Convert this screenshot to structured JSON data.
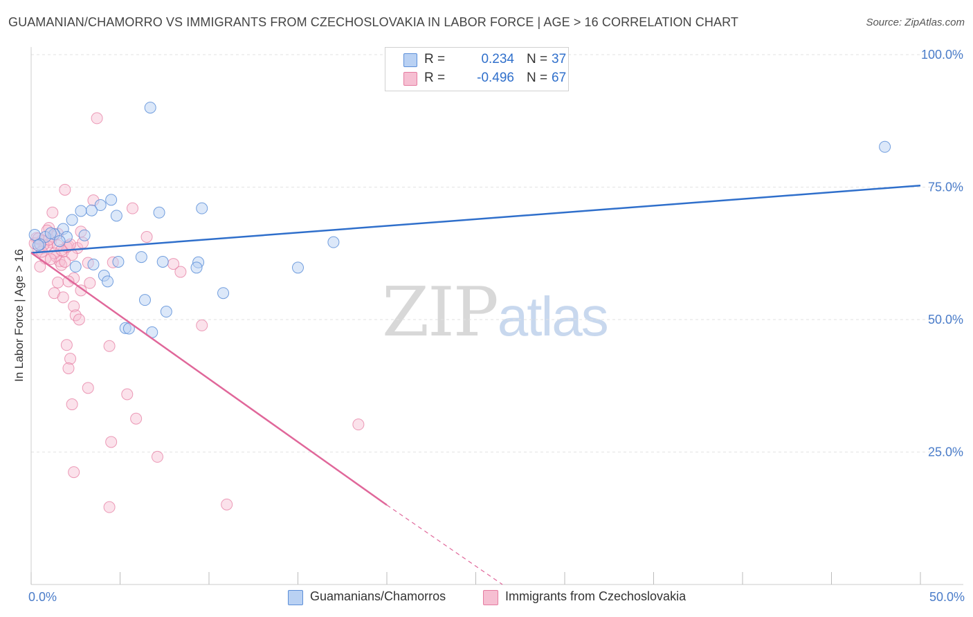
{
  "title": "GUAMANIAN/CHAMORRO VS IMMIGRANTS FROM CZECHOSLOVAKIA IN LABOR FORCE | AGE > 16 CORRELATION CHART",
  "source": "Source: ZipAtlas.com",
  "watermark": {
    "zip": "ZIP",
    "atlas": "atlas"
  },
  "legend": {
    "r_label": "R =",
    "n_label": "N =",
    "series1": {
      "r": "0.234",
      "n": "37"
    },
    "series2": {
      "r": "-0.496",
      "n": "67"
    }
  },
  "colors": {
    "blue_fill": "#b9d1f3",
    "blue_stroke": "#5b8ed8",
    "blue_line": "#2f6fcb",
    "pink_fill": "#f6bfd2",
    "pink_stroke": "#e57ba0",
    "pink_line": "#e0679a",
    "tick_label": "#4a7cc9"
  },
  "chart_data": {
    "type": "scatter",
    "title": "GUAMANIAN/CHAMORRO VS IMMIGRANTS FROM CZECHOSLOVAKIA IN LABOR FORCE | AGE > 16 CORRELATION CHART",
    "xlabel": "",
    "ylabel": "In Labor Force | Age > 16",
    "xlim": [
      0,
      50
    ],
    "ylim": [
      0,
      100
    ],
    "x_tick_labels": [
      {
        "value": 0,
        "label": "0.0%"
      },
      {
        "value": 50,
        "label": "50.0%"
      }
    ],
    "y_tick_labels": [
      {
        "value": 100,
        "label": "100.0%"
      },
      {
        "value": 75,
        "label": "75.0%"
      },
      {
        "value": 50,
        "label": "50.0%"
      },
      {
        "value": 25,
        "label": "25.0%"
      }
    ],
    "series": [
      {
        "name": "Guamanians/Chamorros",
        "color": "blue",
        "r": 0.234,
        "n": 37,
        "trend": {
          "x": [
            0,
            50
          ],
          "y": [
            62.6,
            75.3
          ]
        },
        "points": [
          [
            6.7,
            90.0
          ],
          [
            48.0,
            82.6
          ],
          [
            4.5,
            72.6
          ],
          [
            3.9,
            71.6
          ],
          [
            3.4,
            70.6
          ],
          [
            2.8,
            70.5
          ],
          [
            9.6,
            71.0
          ],
          [
            7.2,
            70.2
          ],
          [
            4.8,
            69.6
          ],
          [
            2.3,
            68.8
          ],
          [
            1.8,
            67.1
          ],
          [
            1.3,
            66.1
          ],
          [
            0.2,
            66.0
          ],
          [
            0.8,
            65.6
          ],
          [
            2.0,
            65.6
          ],
          [
            3.0,
            65.9
          ],
          [
            1.6,
            64.8
          ],
          [
            17.0,
            64.6
          ],
          [
            0.5,
            64.2
          ],
          [
            6.2,
            61.8
          ],
          [
            4.9,
            60.9
          ],
          [
            7.4,
            60.9
          ],
          [
            9.4,
            60.8
          ],
          [
            3.5,
            60.4
          ],
          [
            2.5,
            60.0
          ],
          [
            9.3,
            59.8
          ],
          [
            15.0,
            59.8
          ],
          [
            4.1,
            58.3
          ],
          [
            4.3,
            57.2
          ],
          [
            10.8,
            55.0
          ],
          [
            6.4,
            53.7
          ],
          [
            7.6,
            51.5
          ],
          [
            5.3,
            48.4
          ],
          [
            5.5,
            48.3
          ],
          [
            6.8,
            47.6
          ],
          [
            0.4,
            64.0
          ],
          [
            1.1,
            66.3
          ]
        ]
      },
      {
        "name": "Immigrants from Czechoslovakia",
        "color": "pink",
        "r": -0.496,
        "n": 67,
        "trend_solid": {
          "x": [
            0,
            20
          ],
          "y": [
            62.6,
            15.0
          ]
        },
        "trend_dashed": {
          "x": [
            20,
            26.5
          ],
          "y": [
            15.0,
            0.0
          ]
        },
        "points": [
          [
            3.7,
            88.0
          ],
          [
            1.9,
            74.5
          ],
          [
            3.5,
            72.5
          ],
          [
            5.7,
            71.0
          ],
          [
            1.2,
            70.2
          ],
          [
            1.0,
            67.3
          ],
          [
            2.8,
            66.6
          ],
          [
            1.5,
            66.2
          ],
          [
            6.5,
            65.6
          ],
          [
            0.3,
            65.4
          ],
          [
            0.6,
            64.9
          ],
          [
            1.1,
            64.6
          ],
          [
            0.9,
            63.9
          ],
          [
            2.1,
            63.9
          ],
          [
            2.6,
            63.5
          ],
          [
            0.4,
            63.2
          ],
          [
            1.8,
            62.8
          ],
          [
            2.3,
            62.2
          ],
          [
            1.4,
            61.9
          ],
          [
            0.8,
            61.5
          ],
          [
            1.6,
            61.0
          ],
          [
            3.2,
            60.7
          ],
          [
            4.6,
            60.8
          ],
          [
            8.0,
            60.5
          ],
          [
            1.7,
            60.3
          ],
          [
            0.5,
            60.0
          ],
          [
            8.4,
            59.0
          ],
          [
            2.4,
            57.8
          ],
          [
            1.5,
            57.0
          ],
          [
            2.1,
            57.2
          ],
          [
            3.3,
            56.9
          ],
          [
            2.8,
            55.5
          ],
          [
            1.3,
            55.0
          ],
          [
            1.8,
            54.2
          ],
          [
            2.4,
            52.5
          ],
          [
            2.5,
            50.8
          ],
          [
            2.7,
            50.0
          ],
          [
            9.6,
            48.9
          ],
          [
            2.0,
            45.2
          ],
          [
            4.4,
            45.0
          ],
          [
            2.2,
            42.6
          ],
          [
            2.1,
            40.8
          ],
          [
            3.2,
            37.1
          ],
          [
            5.4,
            35.9
          ],
          [
            2.3,
            34.0
          ],
          [
            18.4,
            30.2
          ],
          [
            5.9,
            31.3
          ],
          [
            4.5,
            26.9
          ],
          [
            7.1,
            24.1
          ],
          [
            2.4,
            21.2
          ],
          [
            4.4,
            14.6
          ],
          [
            11.0,
            15.1
          ],
          [
            0.7,
            64.1
          ],
          [
            1.2,
            65.7
          ],
          [
            0.2,
            64.4
          ],
          [
            2.0,
            63.7
          ],
          [
            1.0,
            65.1
          ],
          [
            1.5,
            64.0
          ],
          [
            0.6,
            62.8
          ],
          [
            2.9,
            64.5
          ],
          [
            1.9,
            60.9
          ],
          [
            0.9,
            66.8
          ],
          [
            1.3,
            62.5
          ],
          [
            2.2,
            64.2
          ],
          [
            0.4,
            65.3
          ],
          [
            1.7,
            63.1
          ],
          [
            1.1,
            61.4
          ]
        ]
      }
    ]
  },
  "bottom_legend": {
    "item1": "Guamanians/Chamorros",
    "item2": "Immigrants from Czechoslovakia"
  }
}
